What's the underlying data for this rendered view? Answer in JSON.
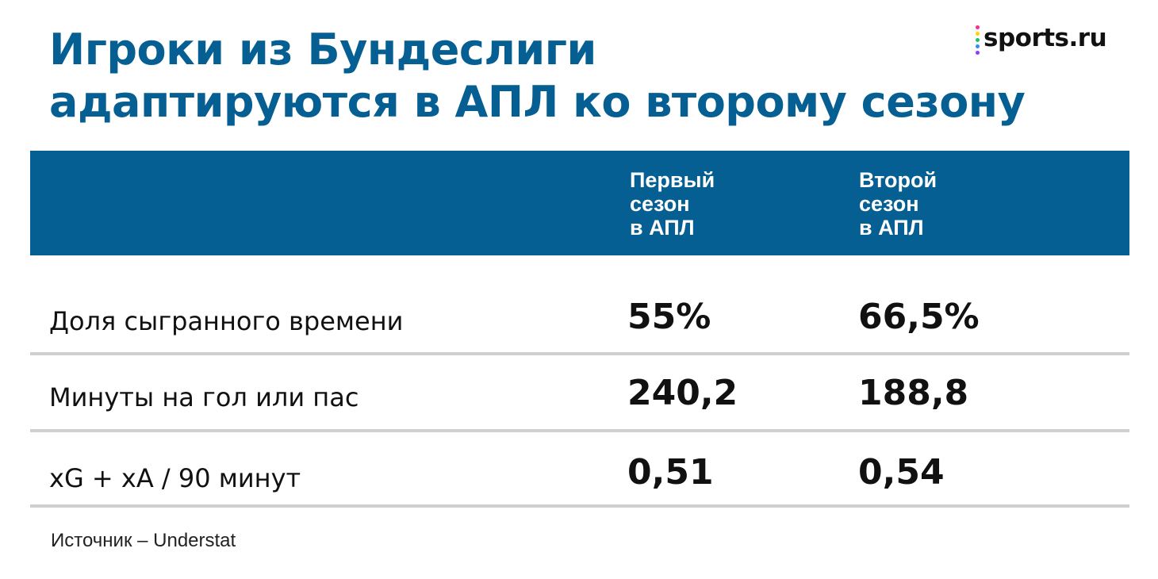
{
  "title_lines": [
    "Игроки из Бундеслиги",
    "адаптируются в АПЛ ко второму сезону"
  ],
  "brand": {
    "name": "sports.ru",
    "dot_colors": [
      "#ff2c8a",
      "#ffd400",
      "#19c36b",
      "#2f8cff",
      "#8a3cff"
    ]
  },
  "colors": {
    "accent": "#055f93",
    "divider": "#cfcfcf",
    "text": "#111111"
  },
  "source": "Источник – Understat",
  "chart_data": {
    "type": "table",
    "columns": [
      {
        "lines": [
          "Первый",
          "сезон",
          "в АПЛ"
        ]
      },
      {
        "lines": [
          "Второй",
          "сезон",
          "в АПЛ"
        ]
      }
    ],
    "rows": [
      {
        "label": "Доля сыгранного времени",
        "values": [
          "55%",
          "66,5%"
        ]
      },
      {
        "label": "Минуты на гол или пас",
        "values": [
          "240,2",
          "188,8"
        ]
      },
      {
        "label": "xG + xA / 90 минут",
        "values": [
          "0,51",
          "0,54"
        ]
      }
    ]
  }
}
